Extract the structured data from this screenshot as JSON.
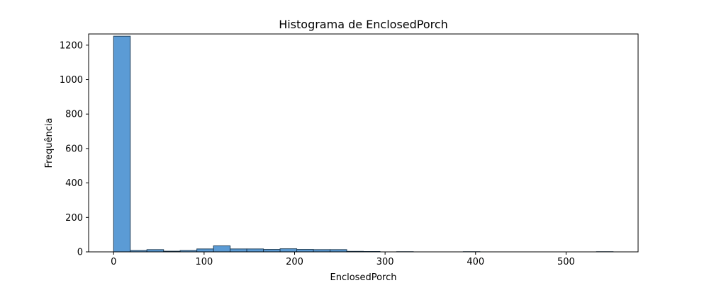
{
  "chart_data": {
    "type": "bar",
    "title": "Histograma de EnclosedPorch",
    "xlabel": "EnclosedPorch",
    "ylabel": "Frequência",
    "xlim": [
      -27.6,
      579.6
    ],
    "ylim": [
      0,
      1265
    ],
    "xticks": [
      0,
      100,
      200,
      300,
      400,
      500
    ],
    "yticks": [
      0,
      200,
      400,
      600,
      800,
      1000,
      1200
    ],
    "bin_edges": [
      0,
      18.4,
      36.8,
      55.2,
      73.6,
      92,
      110.4,
      128.8,
      147.2,
      165.6,
      184,
      202.4,
      220.8,
      239.2,
      257.6,
      276,
      294.4,
      312.8,
      331.2,
      349.6,
      368,
      386.4,
      404.8,
      423.2,
      441.6,
      460,
      478.4,
      496.8,
      515.2,
      533.6,
      552
    ],
    "counts": [
      1252,
      8,
      13,
      4,
      8,
      17,
      35,
      17,
      17,
      14,
      18,
      14,
      13,
      13,
      3,
      2,
      0,
      1,
      0,
      0,
      0,
      1,
      0,
      0,
      0,
      0,
      0,
      0,
      0,
      1
    ],
    "bar_color": "#5b9bd5",
    "bar_edge_color": "#1f3f5a",
    "grid": false
  }
}
